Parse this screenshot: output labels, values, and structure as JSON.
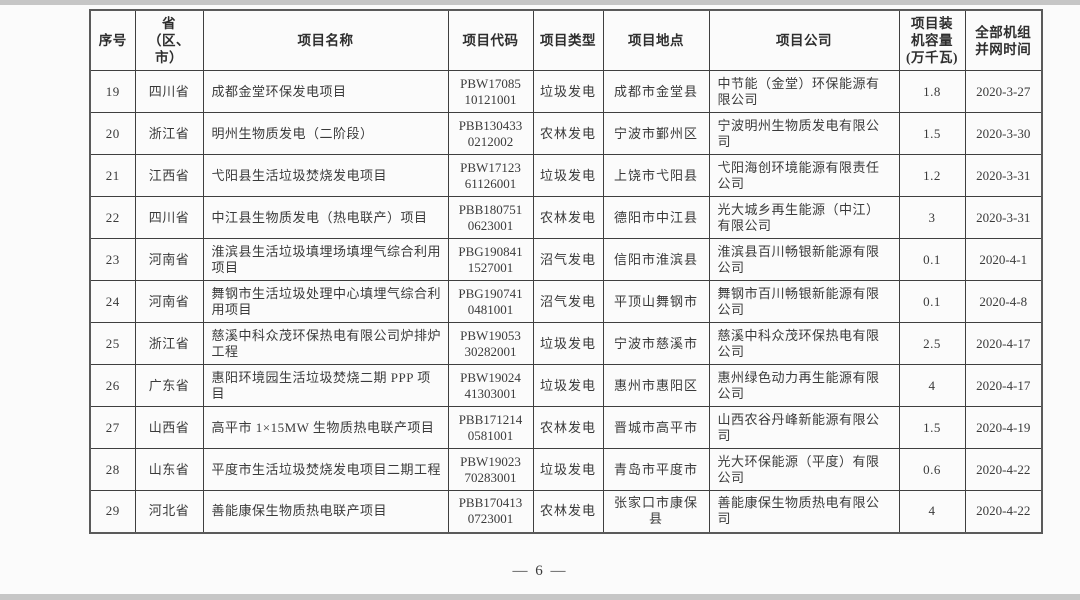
{
  "table": {
    "headers": [
      "序号",
      "省\n（区、市）",
      "项目名称",
      "项目代码",
      "项目类型",
      "项目地点",
      "项目公司",
      "项目装\n机容量\n(万千瓦)",
      "全部机组\n并网时间"
    ],
    "rows": [
      {
        "no": "19",
        "province": "四川省",
        "name": "成都金堂环保发电项目",
        "code": "PBW17085\n10121001",
        "type": "垃圾发电",
        "location": "成都市金堂县",
        "company": "中节能（金堂）环保能源有限公司",
        "capacity": "1.8",
        "date": "2020-3-27"
      },
      {
        "no": "20",
        "province": "浙江省",
        "name": "明州生物质发电（二阶段）",
        "code": "PBB130433\n0212002",
        "type": "农林发电",
        "location": "宁波市鄞州区",
        "company": "宁波明州生物质发电有限公司",
        "capacity": "1.5",
        "date": "2020-3-30"
      },
      {
        "no": "21",
        "province": "江西省",
        "name": "弋阳县生活垃圾焚烧发电项目",
        "code": "PBW17123\n61126001",
        "type": "垃圾发电",
        "location": "上饶市弋阳县",
        "company": "弋阳海创环境能源有限责任公司",
        "capacity": "1.2",
        "date": "2020-3-31"
      },
      {
        "no": "22",
        "province": "四川省",
        "name": "中江县生物质发电（热电联产）项目",
        "code": "PBB180751\n0623001",
        "type": "农林发电",
        "location": "德阳市中江县",
        "company": "光大城乡再生能源（中江）有限公司",
        "capacity": "3",
        "date": "2020-3-31"
      },
      {
        "no": "23",
        "province": "河南省",
        "name": "淮滨县生活垃圾填埋场填埋气综合利用项目",
        "code": "PBG190841\n1527001",
        "type": "沼气发电",
        "location": "信阳市淮滨县",
        "company": "淮滨县百川畅银新能源有限公司",
        "capacity": "0.1",
        "date": "2020-4-1"
      },
      {
        "no": "24",
        "province": "河南省",
        "name": "舞钢市生活垃圾处理中心填埋气综合利用项目",
        "code": "PBG190741\n0481001",
        "type": "沼气发电",
        "location": "平顶山舞钢市",
        "company": "舞钢市百川畅银新能源有限公司",
        "capacity": "0.1",
        "date": "2020-4-8"
      },
      {
        "no": "25",
        "province": "浙江省",
        "name": "慈溪中科众茂环保热电有限公司炉排炉工程",
        "code": "PBW19053\n30282001",
        "type": "垃圾发电",
        "location": "宁波市慈溪市",
        "company": "慈溪中科众茂环保热电有限公司",
        "capacity": "2.5",
        "date": "2020-4-17"
      },
      {
        "no": "26",
        "province": "广东省",
        "name": "惠阳环境园生活垃圾焚烧二期 PPP 项目",
        "code": "PBW19024\n41303001",
        "type": "垃圾发电",
        "location": "惠州市惠阳区",
        "company": "惠州绿色动力再生能源有限公司",
        "capacity": "4",
        "date": "2020-4-17"
      },
      {
        "no": "27",
        "province": "山西省",
        "name": "高平市 1×15MW 生物质热电联产项目",
        "code": "PBB171214\n0581001",
        "type": "农林发电",
        "location": "晋城市高平市",
        "company": "山西农谷丹峰新能源有限公司",
        "capacity": "1.5",
        "date": "2020-4-19"
      },
      {
        "no": "28",
        "province": "山东省",
        "name": "平度市生活垃圾焚烧发电项目二期工程",
        "code": "PBW19023\n70283001",
        "type": "垃圾发电",
        "location": "青岛市平度市",
        "company": "光大环保能源（平度）有限公司",
        "capacity": "0.6",
        "date": "2020-4-22"
      },
      {
        "no": "29",
        "province": "河北省",
        "name": "善能康保生物质热电联产项目",
        "code": "PBB170413\n0723001",
        "type": "农林发电",
        "location": "张家口市康保县",
        "company": "善能康保生物质热电有限公司",
        "capacity": "4",
        "date": "2020-4-22"
      }
    ]
  },
  "footer": {
    "page_number": "— 6 —"
  },
  "colors": {
    "border": "#3f3f3f",
    "text": "#3a3a3a",
    "edge_strip": "#c6c6c6",
    "background": "#fbfbfb"
  }
}
